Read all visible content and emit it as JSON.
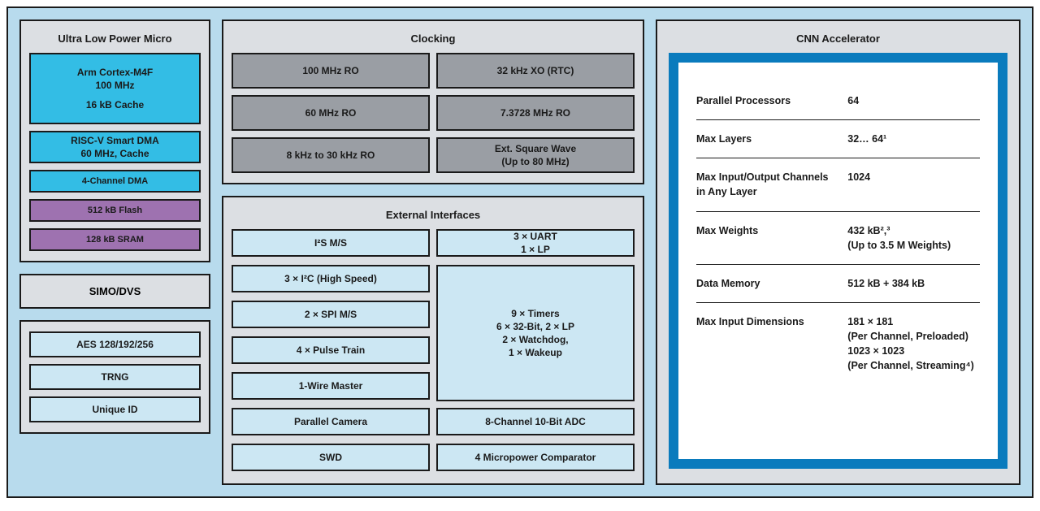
{
  "colors": {
    "outer_bg": "#b8dbed",
    "panel_gray": "#dcdfe3",
    "block_cyan": "#33bde5",
    "block_ltblue": "#cce7f3",
    "block_purple": "#9e72b0",
    "block_darkgray": "#9a9ea4",
    "cnn_border": "#0a7bbd",
    "cnn_bg": "#ffffff",
    "border": "#1a1a1a"
  },
  "ulpm": {
    "title": "Ultra Low Power Micro",
    "cortex_l1": "Arm Cortex-M4F",
    "cortex_l2": "100 MHz",
    "cortex_l3": "16 kB Cache",
    "riscv_l1": "RISC-V Smart DMA",
    "riscv_l2": "60 MHz, Cache",
    "dma": "4-Channel DMA",
    "flash": "512 kB Flash",
    "sram": "128 kB SRAM"
  },
  "simo": {
    "label": "SIMO/DVS"
  },
  "security": {
    "aes": "AES 128/192/256",
    "trng": "TRNG",
    "uid": "Unique ID"
  },
  "clocking": {
    "title": "Clocking",
    "ro100": "100 MHz RO",
    "ro60": "60 MHz RO",
    "ro8_30": "8 kHz to 30 kHz RO",
    "xo32": "32 kHz XO (RTC)",
    "ro7_3": "7.3728 MHz RO",
    "ext_l1": "Ext. Square Wave",
    "ext_l2": "(Up to 80 MHz)"
  },
  "ext": {
    "title": "External Interfaces",
    "i2s": "I²S M/S",
    "i2c": "3 × I²C (High Speed)",
    "spi": "2 × SPI M/S",
    "ptrain": "4 × Pulse Train",
    "onewire": "1-Wire Master",
    "pcam": "Parallel Camera",
    "swd": "SWD",
    "uart_l1": "3 × UART",
    "uart_l2": "1 × LP",
    "timers_l1": "9 × Timers",
    "timers_l2": "6 × 32-Bit, 2 × LP",
    "timers_l3": "2 × Watchdog,",
    "timers_l4": "1 × Wakeup",
    "adc": "8-Channel 10-Bit ADC",
    "comp": "4 Micropower Comparator"
  },
  "cnn": {
    "title": "CNN Accelerator",
    "rows": [
      {
        "label": "Parallel Processors",
        "value": "64"
      },
      {
        "label": "Max Layers",
        "value": "32… 64¹"
      },
      {
        "label": "Max Input/Output Channels in Any Layer",
        "value": "1024"
      },
      {
        "label": "Max Weights",
        "value": "432 kB²,³\n(Up to 3.5 M Weights)"
      },
      {
        "label": "Data Memory",
        "value": "512 kB + 384 kB"
      },
      {
        "label": "Max Input Dimensions",
        "value": "181 × 181\n(Per Channel, Preloaded)\n1023 × 1023\n(Per Channel, Streaming⁴)"
      }
    ]
  }
}
